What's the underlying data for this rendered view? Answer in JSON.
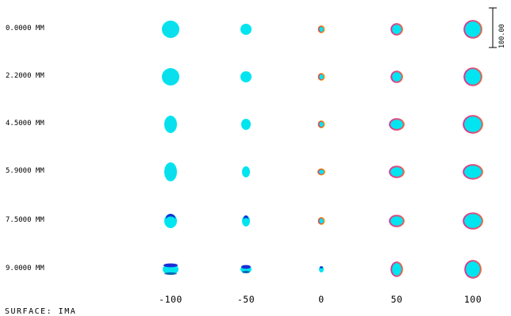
{
  "title": "",
  "field_labels": [
    "0.0000 MM",
    "2.2000 MM",
    "4.5000 MM",
    "5.9000 MM",
    "7.5000 MM",
    "9.0000 MM"
  ],
  "defocus_ticks": [
    "-100",
    "-50",
    "0",
    "50",
    "100"
  ],
  "scale_bar_label": "100.00",
  "surface_label": "SURFACE: IMA",
  "colors": {
    "primary": "#00e5f0",
    "secondary": "#e8336e",
    "tertiary": "#1a2fd6",
    "quaternary": "#f2a010"
  }
}
